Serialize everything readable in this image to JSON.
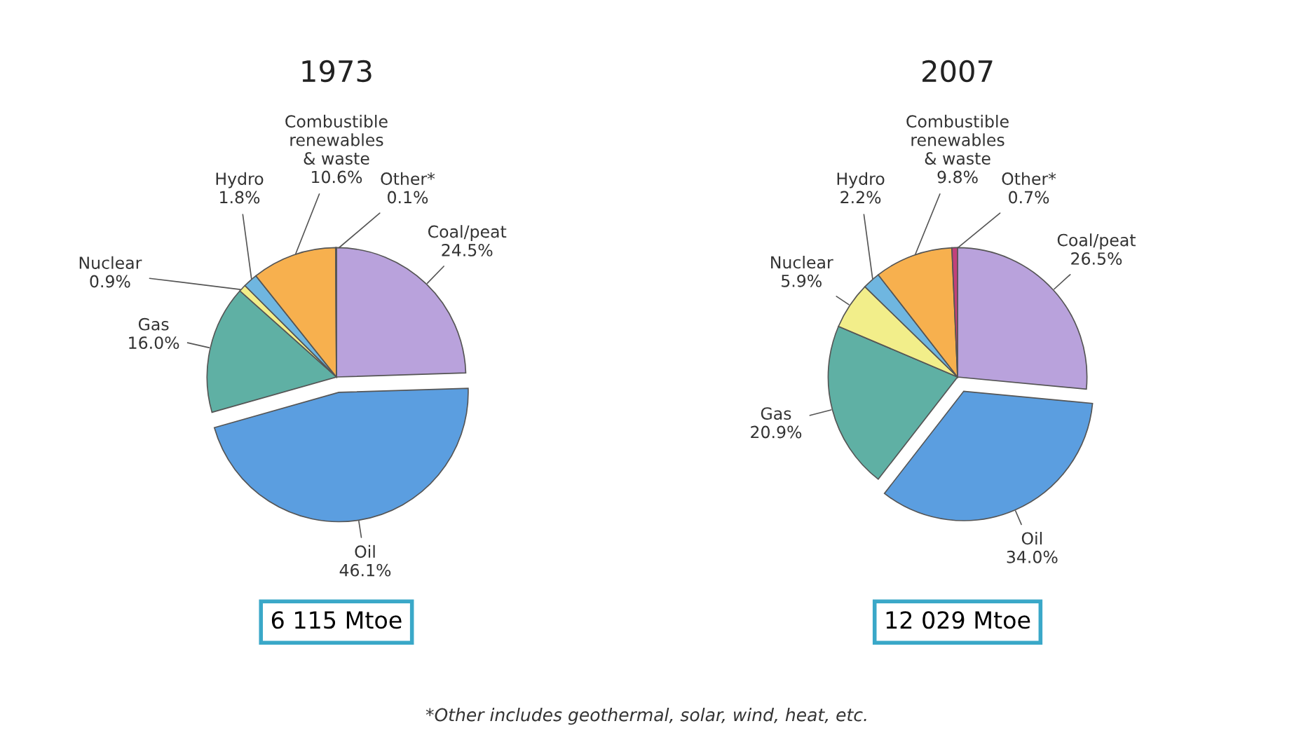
{
  "chart_data": [
    {
      "type": "pie",
      "title": "1973",
      "categories": [
        "Coal/peat",
        "Oil",
        "Gas",
        "Nuclear",
        "Hydro",
        "Combustible renewables & waste",
        "Other*"
      ],
      "values": [
        24.5,
        46.1,
        16.0,
        0.9,
        1.8,
        10.6,
        0.1
      ],
      "value_labels": [
        "24.5%",
        "46.1%",
        "16.0%",
        "0.9%",
        "1.8%",
        "10.6%",
        "0.1%"
      ],
      "colors": [
        "#b9a2dc",
        "#5b9ee0",
        "#5fb0a4",
        "#f2ee8a",
        "#6fb6e0",
        "#f7b04e",
        "#c2407a"
      ],
      "annotations": [
        "6 115 Mtoe"
      ]
    },
    {
      "type": "pie",
      "title": "2007",
      "categories": [
        "Coal/peat",
        "Oil",
        "Gas",
        "Nuclear",
        "Hydro",
        "Combustible renewables & waste",
        "Other*"
      ],
      "values": [
        26.5,
        34.0,
        20.9,
        5.9,
        2.2,
        9.8,
        0.7
      ],
      "value_labels": [
        "26.5%",
        "34.0%",
        "20.9%",
        "5.9%",
        "2.2%",
        "9.8%",
        "0.7%"
      ],
      "colors": [
        "#b9a2dc",
        "#5b9ee0",
        "#5fb0a4",
        "#f2ee8a",
        "#6fb6e0",
        "#f7b04e",
        "#c2407a"
      ],
      "annotations": [
        "12 029 Mtoe",
        "*Other includes geothermal, solar, wind, heat, etc."
      ]
    }
  ]
}
